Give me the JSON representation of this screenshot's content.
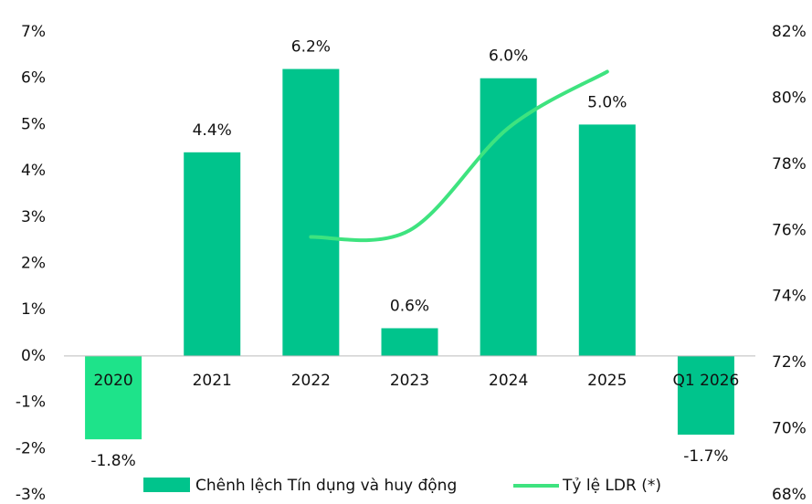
{
  "chart_data": {
    "type": "bar_line",
    "categories": [
      "2020",
      "2021",
      "2022",
      "2023",
      "2024",
      "2025",
      "Q1 2026"
    ],
    "series": [
      {
        "name": "Chênh lệch Tín dụng và huy động",
        "type": "bar",
        "color": "#00c48c",
        "colors": [
          "#1ee38a",
          "#00c48c",
          "#00c48c",
          "#00c48c",
          "#00c48c",
          "#00c48c",
          "#00c48c"
        ],
        "values": [
          -1.8,
          4.4,
          6.2,
          0.6,
          6.0,
          5.0,
          -1.7
        ],
        "value_labels": [
          "-1.8%",
          "4.4%",
          "6.2%",
          "0.6%",
          "6.0%",
          "5.0%",
          "-1.7%"
        ]
      },
      {
        "name": "Tỷ lệ LDR (*)",
        "type": "line",
        "color": "#3ee37f",
        "axis": "y2",
        "values": [
          null,
          null,
          75.8,
          76.0,
          79.1,
          80.8,
          null
        ]
      }
    ],
    "ylim": [
      -3,
      7
    ],
    "yticks": [
      {
        "value": -3,
        "label": "-3%"
      },
      {
        "value": -2,
        "label": "-2%"
      },
      {
        "value": -1,
        "label": "-1%"
      },
      {
        "value": 0,
        "label": "0%"
      },
      {
        "value": 1,
        "label": "1%"
      },
      {
        "value": 2,
        "label": "2%"
      },
      {
        "value": 3,
        "label": "3%"
      },
      {
        "value": 4,
        "label": "4%"
      },
      {
        "value": 5,
        "label": "5%"
      },
      {
        "value": 6,
        "label": "6%"
      },
      {
        "value": 7,
        "label": "7%"
      }
    ],
    "y2lim": [
      68,
      82
    ],
    "y2ticks": [
      {
        "value": 68,
        "label": "68%"
      },
      {
        "value": 70,
        "label": "70%"
      },
      {
        "value": 72,
        "label": "72%"
      },
      {
        "value": 74,
        "label": "74%"
      },
      {
        "value": 76,
        "label": "76%"
      },
      {
        "value": 78,
        "label": "78%"
      },
      {
        "value": 80,
        "label": "80%"
      },
      {
        "value": 82,
        "label": "82%"
      }
    ],
    "legend": "bottom"
  }
}
